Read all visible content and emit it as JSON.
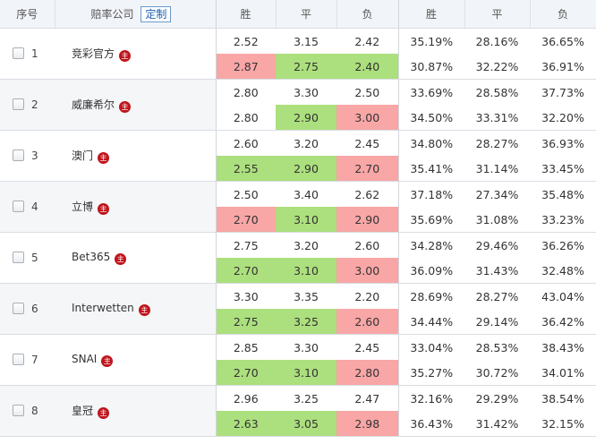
{
  "header": {
    "seq": "序号",
    "company": "赔率公司",
    "custom_button": "定制",
    "odds_win": "胜",
    "odds_draw": "平",
    "odds_lose": "负",
    "pct_win": "胜",
    "pct_draw": "平",
    "pct_lose": "负"
  },
  "badge_text": "主",
  "rows": [
    {
      "seq": "1",
      "company": "竞彩官方",
      "r1": {
        "w": "2.52",
        "d": "3.15",
        "l": "2.42",
        "pw": "35.19%",
        "pd": "28.16%",
        "pl": "36.65%"
      },
      "r2": {
        "w": "2.87",
        "d": "2.75",
        "l": "2.40",
        "pw": "30.87%",
        "pd": "32.22%",
        "pl": "36.91%"
      }
    },
    {
      "seq": "2",
      "company": "威廉希尔",
      "r1": {
        "w": "2.80",
        "d": "3.30",
        "l": "2.50",
        "pw": "33.69%",
        "pd": "28.58%",
        "pl": "37.73%"
      },
      "r2": {
        "w": "2.80",
        "d": "2.90",
        "l": "3.00",
        "pw": "34.50%",
        "pd": "33.31%",
        "pl": "32.20%"
      }
    },
    {
      "seq": "3",
      "company": "澳门",
      "r1": {
        "w": "2.60",
        "d": "3.20",
        "l": "2.45",
        "pw": "34.80%",
        "pd": "28.27%",
        "pl": "36.93%"
      },
      "r2": {
        "w": "2.55",
        "d": "2.90",
        "l": "2.70",
        "pw": "35.41%",
        "pd": "31.14%",
        "pl": "33.45%"
      }
    },
    {
      "seq": "4",
      "company": "立博",
      "r1": {
        "w": "2.50",
        "d": "3.40",
        "l": "2.62",
        "pw": "37.18%",
        "pd": "27.34%",
        "pl": "35.48%"
      },
      "r2": {
        "w": "2.70",
        "d": "3.10",
        "l": "2.90",
        "pw": "35.69%",
        "pd": "31.08%",
        "pl": "33.23%"
      }
    },
    {
      "seq": "5",
      "company": "Bet365",
      "r1": {
        "w": "2.75",
        "d": "3.20",
        "l": "2.60",
        "pw": "34.28%",
        "pd": "29.46%",
        "pl": "36.26%"
      },
      "r2": {
        "w": "2.70",
        "d": "3.10",
        "l": "3.00",
        "pw": "36.09%",
        "pd": "31.43%",
        "pl": "32.48%"
      }
    },
    {
      "seq": "6",
      "company": "Interwetten",
      "r1": {
        "w": "3.30",
        "d": "3.35",
        "l": "2.20",
        "pw": "28.69%",
        "pd": "28.27%",
        "pl": "43.04%"
      },
      "r2": {
        "w": "2.75",
        "d": "3.25",
        "l": "2.60",
        "pw": "34.44%",
        "pd": "29.14%",
        "pl": "36.42%"
      }
    },
    {
      "seq": "7",
      "company": "SNAI",
      "r1": {
        "w": "2.85",
        "d": "3.30",
        "l": "2.45",
        "pw": "33.04%",
        "pd": "28.53%",
        "pl": "38.43%"
      },
      "r2": {
        "w": "2.70",
        "d": "3.10",
        "l": "2.80",
        "pw": "35.27%",
        "pd": "30.72%",
        "pl": "34.01%"
      }
    },
    {
      "seq": "8",
      "company": "皇冠",
      "r1": {
        "w": "2.96",
        "d": "3.25",
        "l": "2.47",
        "pw": "32.16%",
        "pd": "29.29%",
        "pl": "38.54%"
      },
      "r2": {
        "w": "2.63",
        "d": "3.05",
        "l": "2.98",
        "pw": "36.43%",
        "pd": "31.42%",
        "pl": "32.15%"
      }
    }
  ],
  "highlights": {
    "up_color": "#acdf7d",
    "down_color": "#f8a6a6",
    "rows": [
      [
        "down",
        "up",
        "up"
      ],
      [
        "",
        "up",
        "down"
      ],
      [
        "up",
        "up",
        "down"
      ],
      [
        "down",
        "up",
        "down"
      ],
      [
        "up",
        "up",
        "down"
      ],
      [
        "up",
        "up",
        "down"
      ],
      [
        "up",
        "up",
        "down"
      ],
      [
        "up",
        "up",
        "down"
      ]
    ]
  }
}
